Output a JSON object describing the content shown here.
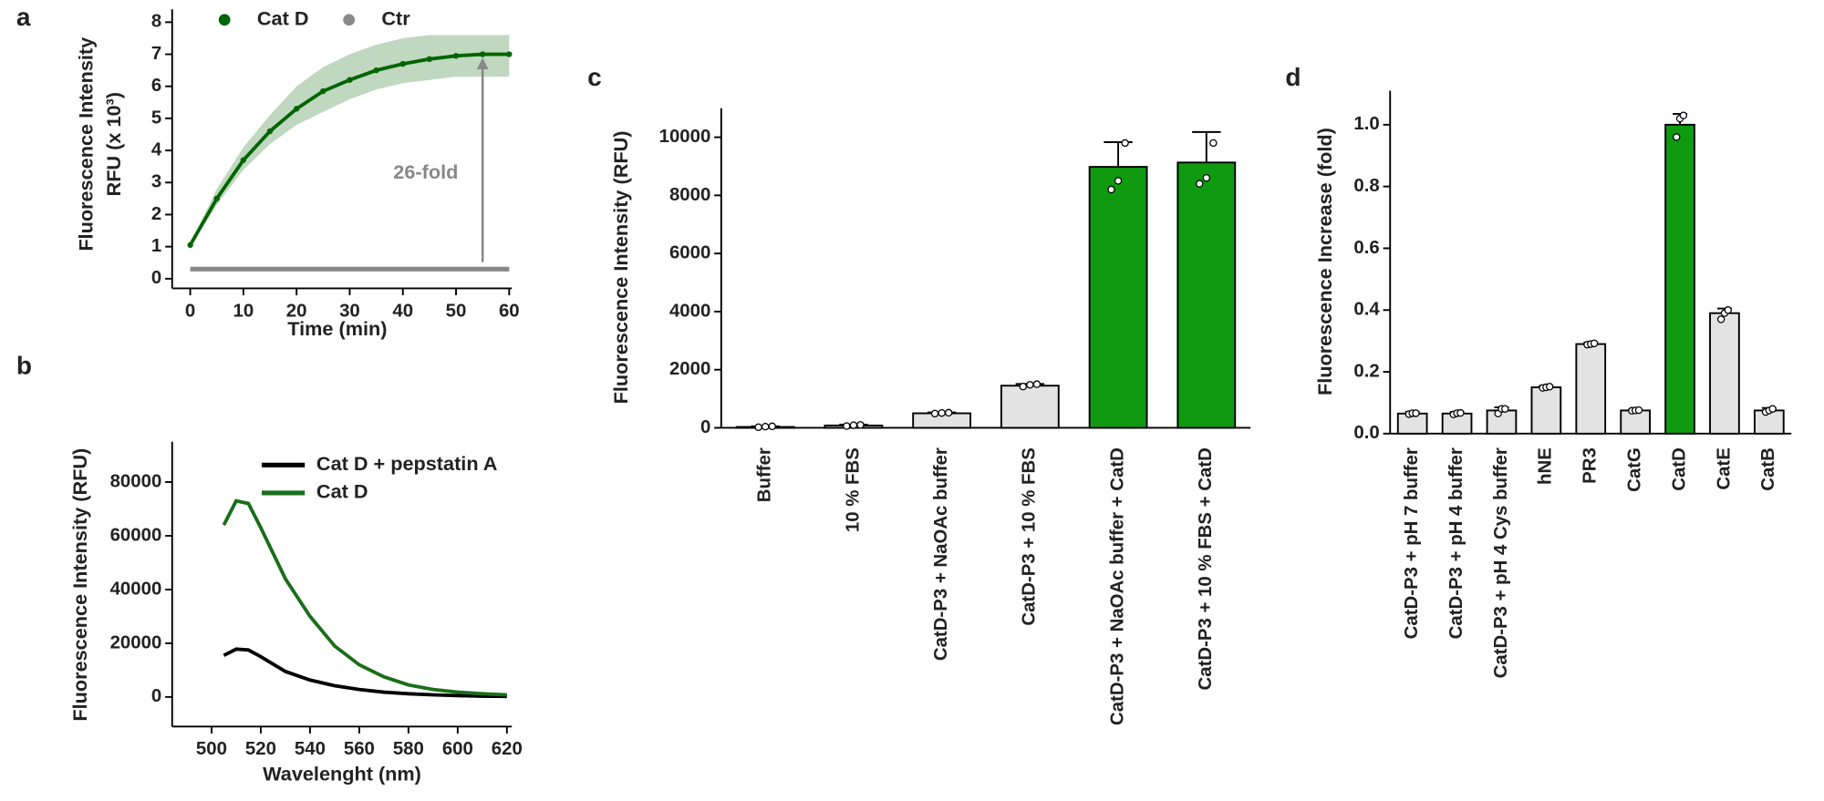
{
  "chart_data": [
    {
      "type": "line",
      "panel": "a",
      "x_label": "Time (min)",
      "y_label": [
        "Fluorescence Intensity",
        "RFU (x 10³)"
      ],
      "x": [
        0,
        5,
        10,
        15,
        20,
        25,
        30,
        35,
        40,
        45,
        50,
        55,
        60
      ],
      "series": [
        {
          "name": "Cat D",
          "color": "#006400",
          "markers": true,
          "values": [
            1.05,
            2.5,
            3.7,
            4.6,
            5.3,
            5.85,
            6.2,
            6.5,
            6.7,
            6.85,
            6.95,
            7.0,
            7.0
          ],
          "band_low": [
            1.0,
            2.3,
            3.4,
            4.2,
            4.8,
            5.2,
            5.6,
            5.9,
            6.1,
            6.2,
            6.3,
            6.3,
            6.3
          ],
          "band_high": [
            1.1,
            2.8,
            4.1,
            5.1,
            6.0,
            6.6,
            7.0,
            7.3,
            7.5,
            7.6,
            7.6,
            7.6,
            7.6
          ]
        },
        {
          "name": "Ctr",
          "color": "#888888",
          "values": [
            0.3,
            0.3,
            0.3,
            0.3,
            0.3,
            0.3,
            0.3,
            0.3,
            0.3,
            0.3,
            0.3,
            0.3,
            0.3
          ]
        }
      ],
      "annotation": "26-fold",
      "xlim": [
        -3.4,
        60.5
      ],
      "ylim": [
        -0.3,
        8.4
      ],
      "xticks": [
        0,
        10,
        20,
        30,
        40,
        50,
        60
      ],
      "yticks": [
        0,
        1,
        2,
        3,
        4,
        5,
        6,
        7,
        8
      ]
    },
    {
      "type": "line",
      "panel": "b",
      "x_label": "Wavelenght (nm)",
      "y_label": [
        "Fluorescence Intensity (RFU)"
      ],
      "x": [
        505,
        510,
        515,
        520,
        530,
        540,
        550,
        560,
        570,
        580,
        590,
        600,
        610,
        620
      ],
      "series": [
        {
          "name": "Cat D  + pepstatin A",
          "color": "#000000",
          "values": [
            15500,
            17800,
            17500,
            15000,
            9500,
            6300,
            4200,
            2800,
            1800,
            1200,
            800,
            500,
            300,
            200
          ]
        },
        {
          "name": "Cat D",
          "color": "#1a6e1a",
          "values": [
            64000,
            73000,
            72000,
            63000,
            44000,
            30000,
            19000,
            12000,
            7500,
            4500,
            2800,
            1800,
            1200,
            800
          ]
        }
      ],
      "xlim": [
        484,
        622
      ],
      "ylim": [
        -11000,
        95000
      ],
      "xticks": [
        500,
        520,
        540,
        560,
        580,
        600,
        620
      ],
      "yticks": [
        0,
        20000,
        40000,
        60000,
        80000
      ]
    },
    {
      "type": "bar",
      "panel": "c",
      "y_label": [
        "Fluorescence Intensity (RFU)"
      ],
      "categories": [
        "Buffer",
        "10 % FBS",
        "CatD-P3 + NaOAc buffer",
        "CatD-P3  + 10 % FBS",
        "CatD-P3 + NaOAc buffer + CatD",
        "CatD-P3 + 10 % FBS + CatD"
      ],
      "values": [
        30,
        80,
        500,
        1450,
        8980,
        9130
      ],
      "errors": [
        20,
        30,
        30,
        60,
        850,
        1050
      ],
      "points": [
        [
          20,
          40,
          50
        ],
        [
          60,
          90,
          100
        ],
        [
          490,
          510,
          520
        ],
        [
          1420,
          1480,
          1500
        ],
        [
          8200,
          8500,
          9800
        ],
        [
          8400,
          8600,
          9800
        ]
      ],
      "colors": [
        "#e3e3e3",
        "#e3e3e3",
        "#e3e3e3",
        "#e3e3e3",
        "#0f9a0f",
        "#0f9a0f"
      ],
      "ylim": [
        0,
        11000
      ],
      "yticks": [
        0,
        2000,
        4000,
        6000,
        8000,
        10000
      ]
    },
    {
      "type": "bar",
      "panel": "d",
      "y_label": [
        "Fluorescence Increase (fold)"
      ],
      "categories": [
        "CatD-P3 + pH 7 buffer",
        "CatD-P3 + pH 4 buffer",
        "CatD-P3 + pH 4  Cys buffer",
        "hNE",
        "PR3",
        "CatG",
        "CatD",
        "CatE",
        "CatB"
      ],
      "values": [
        0.065,
        0.065,
        0.075,
        0.15,
        0.29,
        0.075,
        1.0,
        0.39,
        0.075
      ],
      "errors": [
        0.005,
        0.005,
        0.01,
        0.005,
        0.005,
        0.003,
        0.035,
        0.015,
        0.008
      ],
      "points": [
        [
          0.063,
          0.066,
          0.066
        ],
        [
          0.062,
          0.066,
          0.067
        ],
        [
          0.065,
          0.08,
          0.08
        ],
        [
          0.148,
          0.15,
          0.152
        ],
        [
          0.288,
          0.29,
          0.292
        ],
        [
          0.074,
          0.075,
          0.076
        ],
        [
          0.96,
          1.02,
          1.03
        ],
        [
          0.37,
          0.39,
          0.4
        ],
        [
          0.07,
          0.075,
          0.08
        ]
      ],
      "colors": [
        "#e3e3e3",
        "#e3e3e3",
        "#e3e3e3",
        "#e3e3e3",
        "#e3e3e3",
        "#e3e3e3",
        "#0f9a0f",
        "#e3e3e3",
        "#e3e3e3"
      ],
      "ylim": [
        0,
        1.11
      ],
      "yticks": [
        {
          "value": 0,
          "label": "0.0"
        },
        0.2,
        0.4,
        0.6,
        0.8,
        {
          "value": 1,
          "label": "1.0"
        }
      ]
    }
  ]
}
